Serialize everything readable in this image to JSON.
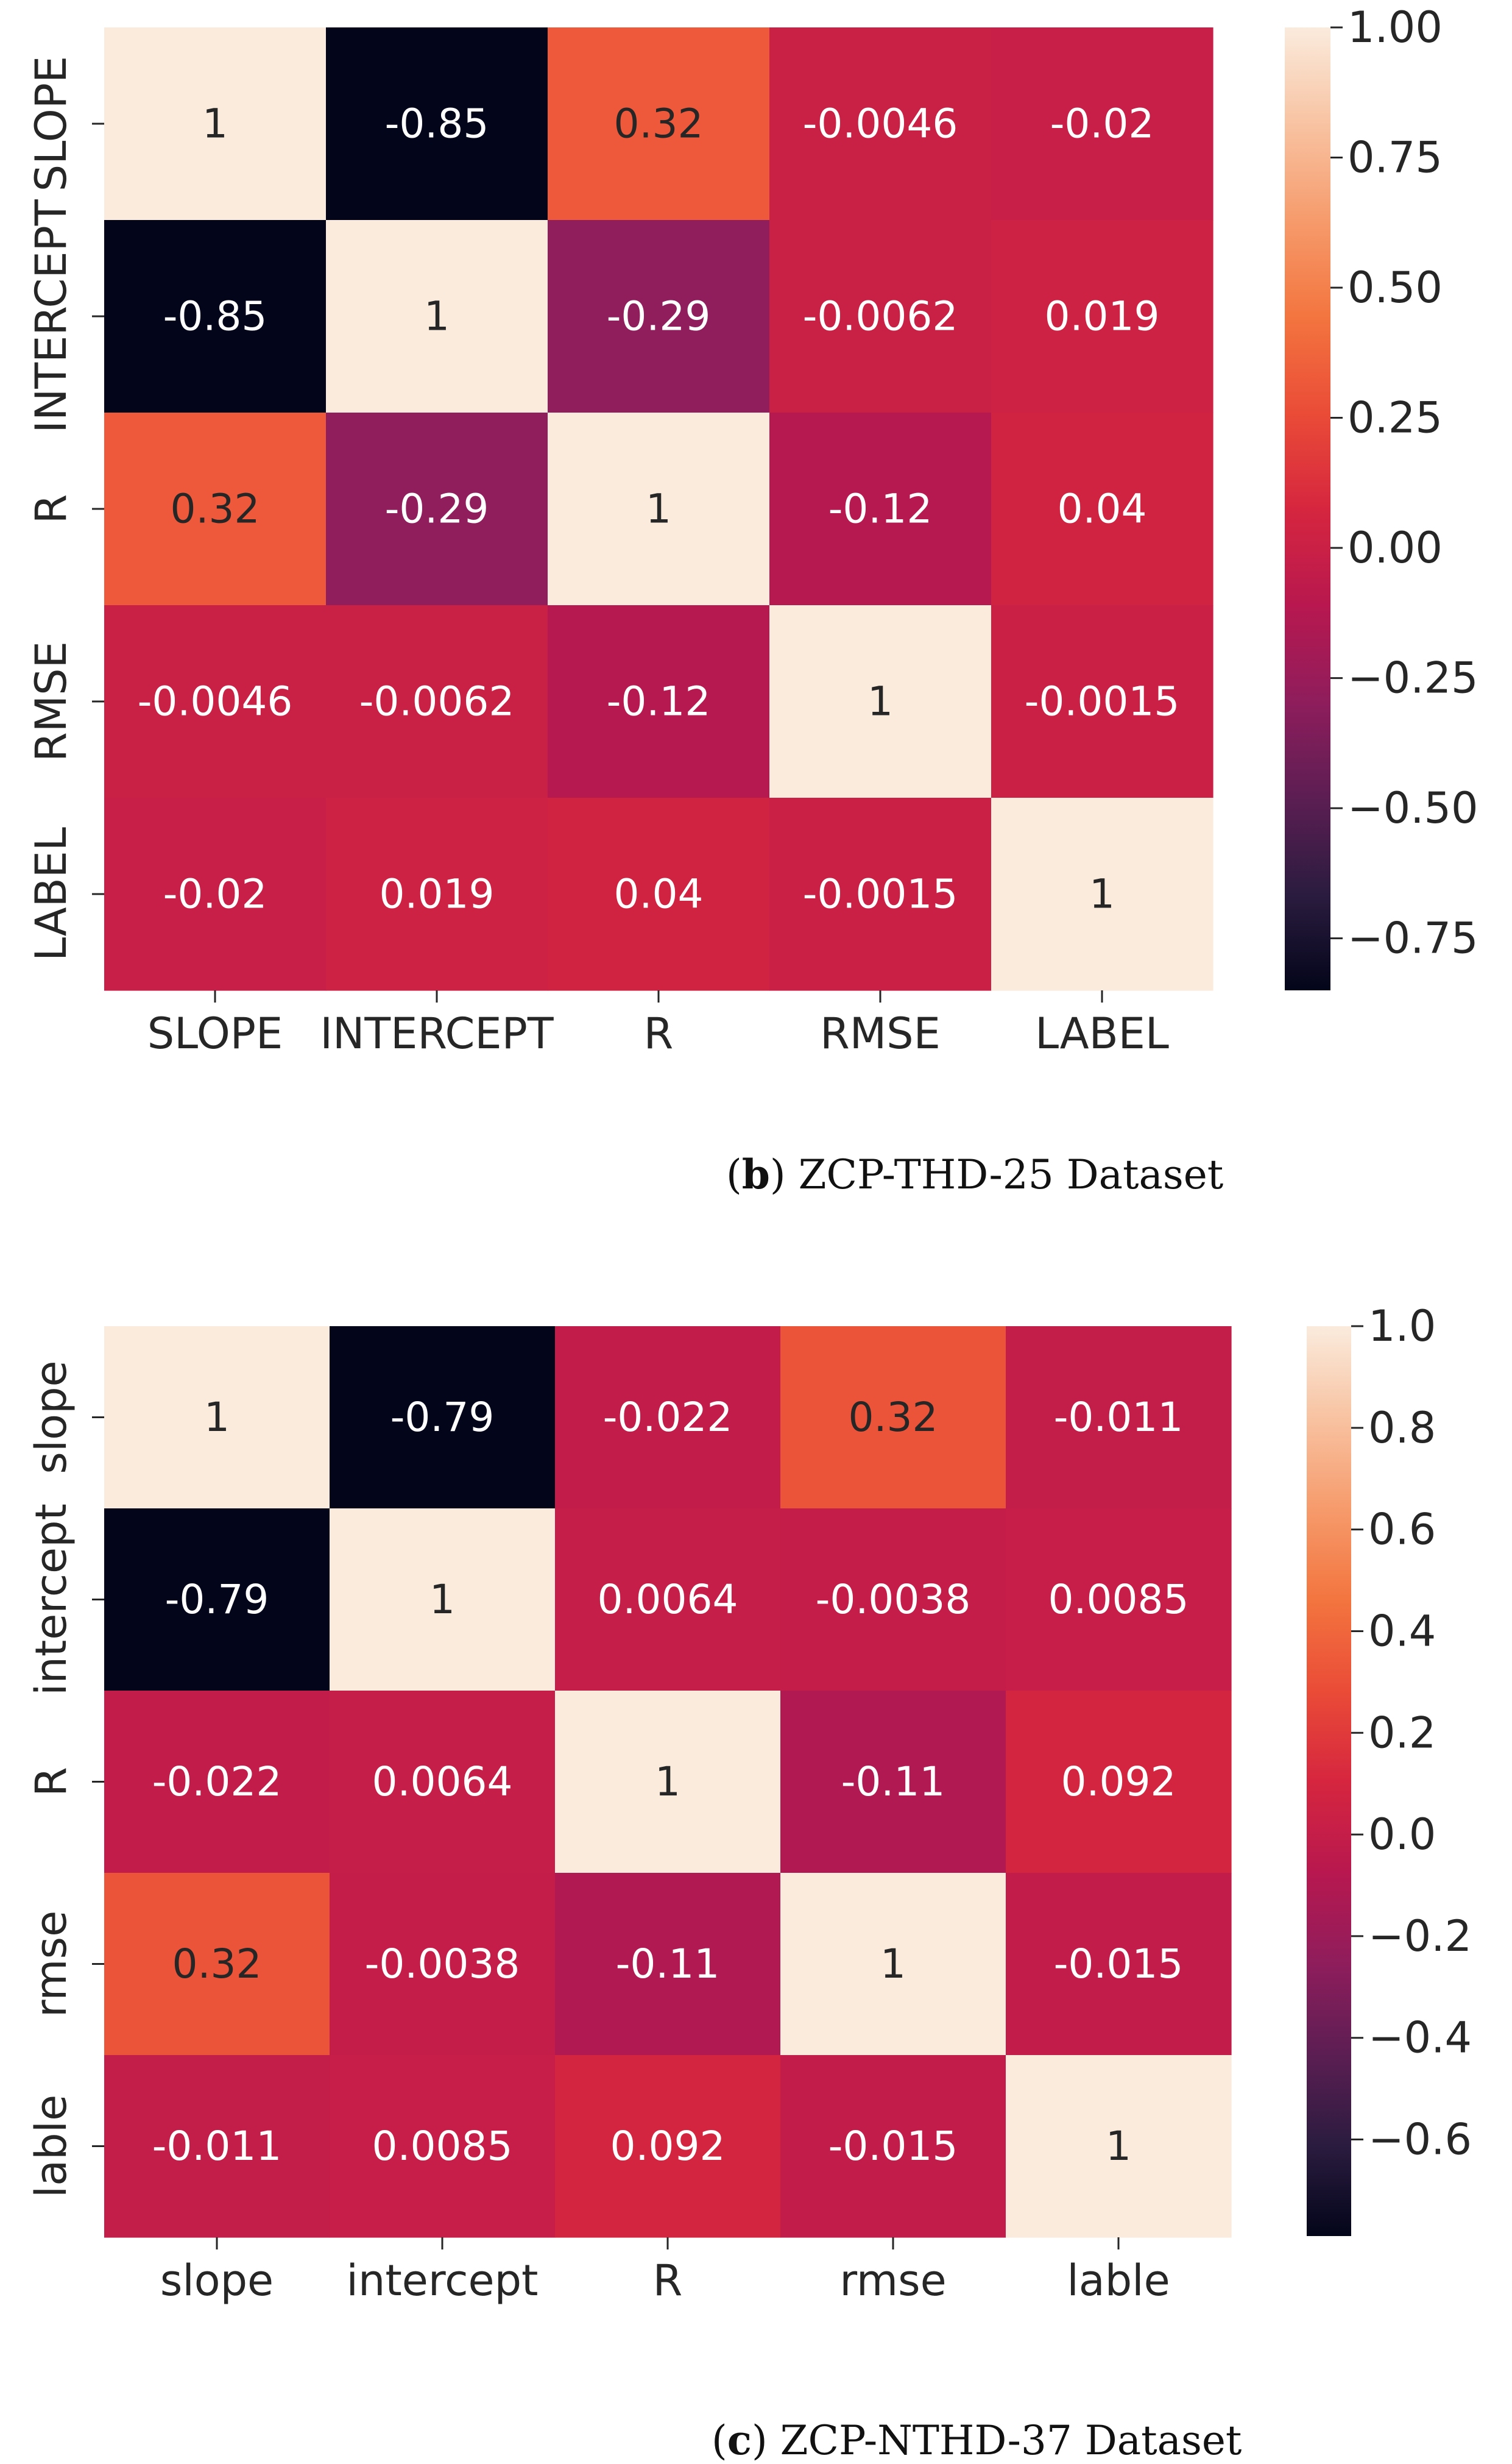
{
  "colors": {
    "background": "#ffffff",
    "axis_text": "#262626",
    "cell_text_dark_bg": "#ffffff",
    "cell_text_light_bg": "#262626",
    "rocket_stops": [
      "#03051a",
      "#2b1c3f",
      "#5c1e53",
      "#8f1d5c",
      "#b8184f",
      "#d6263f",
      "#ea4c37",
      "#f3753f",
      "#f69b6c",
      "#f8c3a2",
      "#faebdd"
    ]
  },
  "chart_data": [
    {
      "type": "heatmap",
      "panel_letter": "b",
      "caption": "ZCP-THD-25 Dataset",
      "row_labels": [
        "SLOPE",
        "INTERCEPT",
        "R",
        "RMSE",
        "LABEL"
      ],
      "col_labels": [
        "SLOPE",
        "INTERCEPT",
        "R",
        "RMSE",
        "LABEL"
      ],
      "values": [
        [
          1,
          -0.85,
          0.32,
          -0.0046,
          -0.02
        ],
        [
          -0.85,
          1,
          -0.29,
          -0.0062,
          0.019
        ],
        [
          0.32,
          -0.29,
          1,
          -0.12,
          0.04
        ],
        [
          -0.0046,
          -0.0062,
          -0.12,
          1,
          -0.0015
        ],
        [
          -0.02,
          0.019,
          0.04,
          -0.0015,
          1
        ]
      ],
      "cell_labels": [
        [
          "1",
          "-0.85",
          "0.32",
          "-0.0046",
          "-0.02"
        ],
        [
          "-0.85",
          "1",
          "-0.29",
          "-0.0062",
          "0.019"
        ],
        [
          "0.32",
          "-0.29",
          "1",
          "-0.12",
          "0.04"
        ],
        [
          "-0.0046",
          "-0.0062",
          "-0.12",
          "1",
          "-0.0015"
        ],
        [
          "-0.02",
          "0.019",
          "0.04",
          "-0.0015",
          "1"
        ]
      ],
      "vmin": -0.85,
      "vmax": 1.0,
      "colorbar_ticks": [
        1.0,
        0.75,
        0.5,
        0.25,
        0.0,
        -0.25,
        -0.5,
        -0.75
      ],
      "colorbar_tick_labels": [
        "1.00",
        "0.75",
        "0.50",
        "0.25",
        "0.00",
        "−0.25",
        "−0.50",
        "−0.75"
      ]
    },
    {
      "type": "heatmap",
      "panel_letter": "c",
      "caption": "ZCP-NTHD-37 Dataset",
      "row_labels": [
        "slope",
        "intercept",
        "R",
        "rmse",
        "lable"
      ],
      "col_labels": [
        "slope",
        "intercept",
        "R",
        "rmse",
        "lable"
      ],
      "values": [
        [
          1,
          -0.79,
          -0.022,
          0.32,
          -0.011
        ],
        [
          -0.79,
          1,
          0.0064,
          -0.0038,
          0.0085
        ],
        [
          -0.022,
          0.0064,
          1,
          -0.11,
          0.092
        ],
        [
          0.32,
          -0.0038,
          -0.11,
          1,
          -0.015
        ],
        [
          -0.011,
          0.0085,
          0.092,
          -0.015,
          1
        ]
      ],
      "cell_labels": [
        [
          "1",
          "-0.79",
          "-0.022",
          "0.32",
          "-0.011"
        ],
        [
          "-0.79",
          "1",
          "0.0064",
          "-0.0038",
          "0.0085"
        ],
        [
          "-0.022",
          "0.0064",
          "1",
          "-0.11",
          "0.092"
        ],
        [
          "0.32",
          "-0.0038",
          "-0.11",
          "1",
          "-0.015"
        ],
        [
          "-0.011",
          "0.0085",
          "0.092",
          "-0.015",
          "1"
        ]
      ],
      "vmin": -0.79,
      "vmax": 1.0,
      "colorbar_ticks": [
        1.0,
        0.8,
        0.6,
        0.4,
        0.2,
        0.0,
        -0.2,
        -0.4,
        -0.6
      ],
      "colorbar_tick_labels": [
        "1.0",
        "0.8",
        "0.6",
        "0.4",
        "0.2",
        "0.0",
        "−0.2",
        "−0.4",
        "−0.6"
      ]
    }
  ]
}
